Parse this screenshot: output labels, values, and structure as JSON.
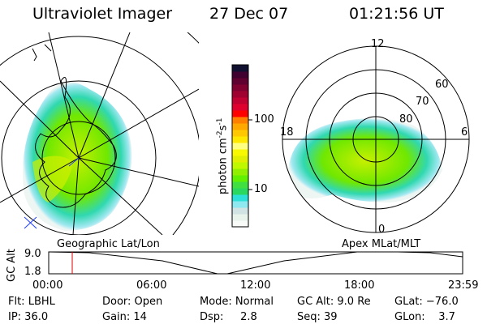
{
  "header": {
    "instrument": "Ultraviolet Imager",
    "date": "27 Dec 07",
    "time": "01:21:56 UT"
  },
  "colorbar": {
    "label": "photon cm",
    "exp1": "-2",
    "mid": "s",
    "exp2": "-1",
    "ticks": [
      "100",
      "10"
    ],
    "colors": [
      "#f8fbf8",
      "#e8f3ec",
      "#d2e3e3",
      "#8ee8f0",
      "#2ce0d8",
      "#2ad860",
      "#40e040",
      "#60f000",
      "#90f000",
      "#c0f800",
      "#e0f000",
      "#f8f800",
      "#ffff80",
      "#ffe800",
      "#ffc800",
      "#ffa800",
      "#ff8000",
      "#ff0000",
      "#e00030",
      "#c00030",
      "#a00030",
      "#800030",
      "#600030",
      "#400030",
      "#101030"
    ]
  },
  "left_map": {
    "caption": "Geographic Lat/Lon"
  },
  "right_map": {
    "caption": "Apex MLat/MLT",
    "mlt_labels": [
      "12",
      "18",
      "6",
      "0"
    ],
    "lat_labels": [
      "60",
      "70",
      "80"
    ]
  },
  "altitude_plot": {
    "ylabel": "GC Alt",
    "yticks": [
      "9.0",
      "1.8"
    ],
    "xticks": [
      "00:00",
      "06:00",
      "12:00",
      "18:00",
      "23:59"
    ],
    "marker_time": "01:22"
  },
  "info": [
    [
      "Flt: LBHL",
      "IP: 36.0"
    ],
    [
      "Door: Open",
      "Gain: 14"
    ],
    [
      "Mode: Normal",
      "Dsp:     2.8"
    ],
    [
      "GC Alt: 9.0 Re",
      "Seq: 39"
    ],
    [
      "GLat: −76.0",
      "GLon:    3.7"
    ]
  ]
}
